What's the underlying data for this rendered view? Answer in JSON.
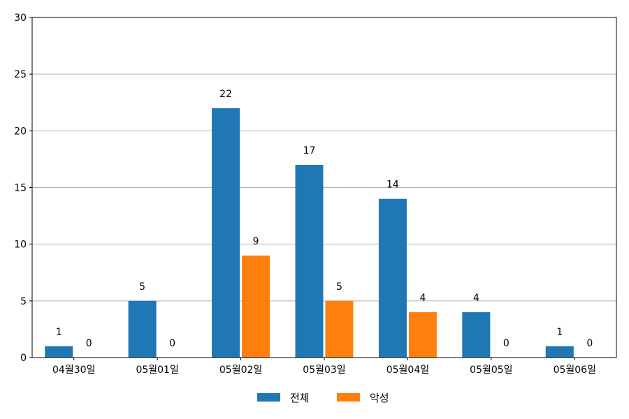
{
  "chart_data": {
    "type": "bar",
    "categories": [
      "04월30일",
      "05월01일",
      "05월02일",
      "05월03일",
      "05월04일",
      "05월05일",
      "05월06일"
    ],
    "series": [
      {
        "name": "전체",
        "values": [
          1,
          5,
          22,
          17,
          14,
          4,
          1
        ],
        "color": "#1f77b4"
      },
      {
        "name": "악성",
        "values": [
          0,
          0,
          9,
          5,
          4,
          0,
          0
        ],
        "color": "#ff7f0e"
      }
    ],
    "title": "",
    "xlabel": "",
    "ylabel": "",
    "ylim": [
      0,
      30
    ],
    "yticks": [
      0,
      5,
      10,
      15,
      20,
      25,
      30
    ],
    "grid": "horizontal",
    "legend_position": "bottom-center"
  }
}
